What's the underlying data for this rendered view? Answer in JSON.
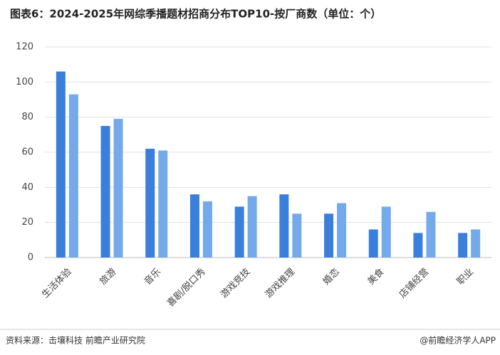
{
  "chart_data": {
    "type": "bar",
    "title": "图表6：2024-2025年网综季播题材招商分布TOP10-按厂商数（单位：个）",
    "categories": [
      "生活体验",
      "旅游",
      "音乐",
      "喜剧/脱口秀",
      "游戏竞技",
      "游戏推理",
      "婚恋",
      "美食",
      "店铺经营",
      "职业"
    ],
    "series": [
      {
        "color": "#3a7fdc",
        "values": [
          106,
          75,
          62,
          36,
          29,
          36,
          25,
          16,
          14,
          14
        ]
      },
      {
        "color": "#74aaea",
        "values": [
          93,
          79,
          61,
          32,
          35,
          25,
          31,
          29,
          26,
          16
        ]
      }
    ],
    "ylim": [
      0,
      120
    ],
    "yticks": [
      0,
      20,
      40,
      60,
      80,
      100,
      120
    ],
    "grid": true
  },
  "footer": {
    "source": "资料来源：击壤科技  前瞻产业研究院",
    "brand": "@前瞻经济学人APP"
  }
}
